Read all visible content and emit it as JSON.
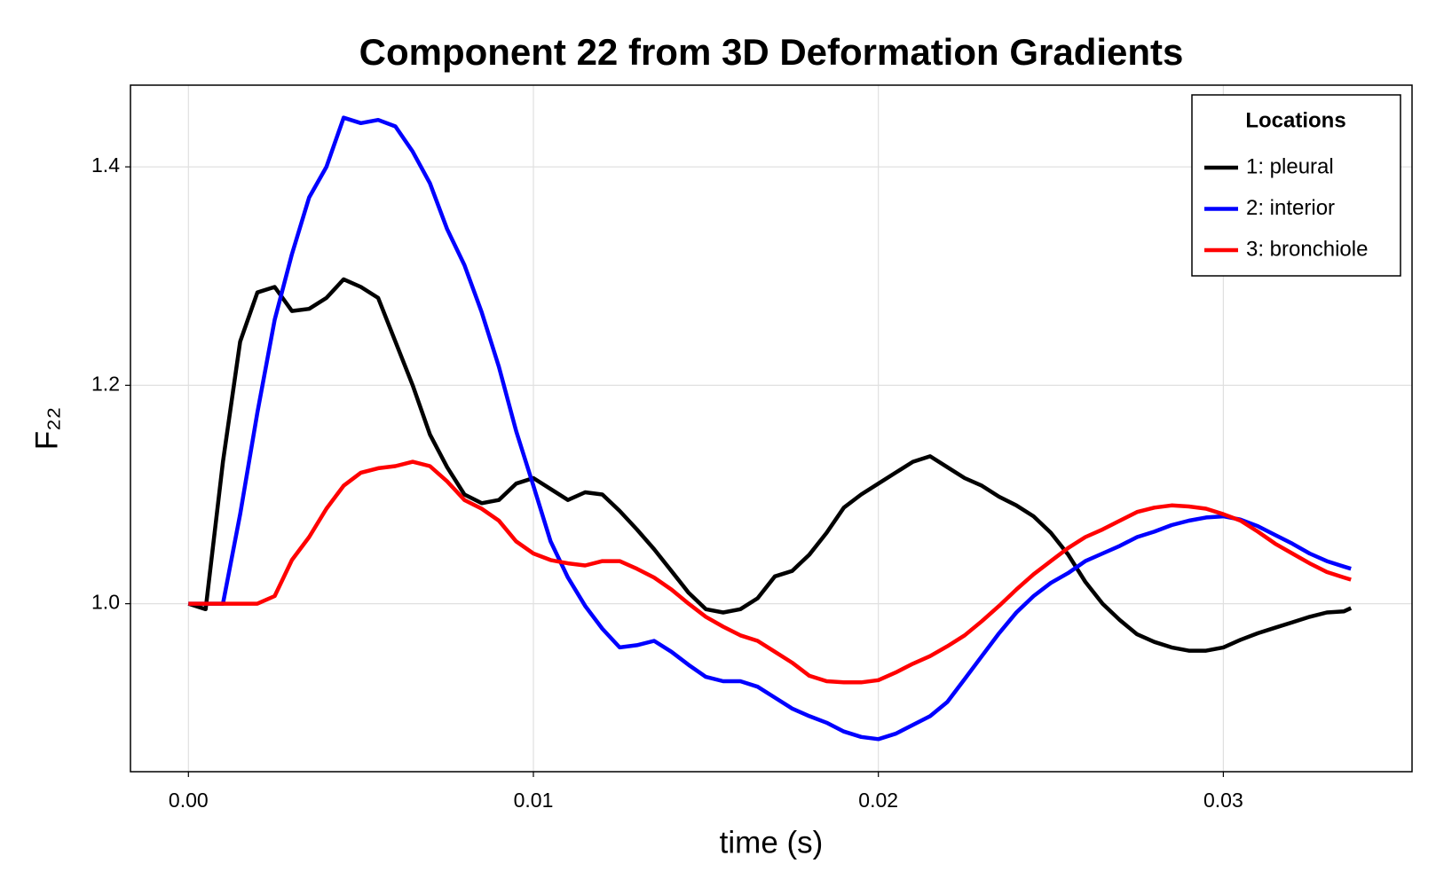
{
  "chart_data": {
    "type": "line",
    "title": "Component 22 from 3D Deformation Gradients",
    "x_label": "time (s)",
    "y_label": "F₂₂",
    "x": [
      0,
      0.0005,
      0.001,
      0.0015,
      0.002,
      0.0025,
      0.003,
      0.0035,
      0.004,
      0.0045,
      0.005,
      0.0055,
      0.006,
      0.0065,
      0.007,
      0.0075,
      0.008,
      0.0085,
      0.009,
      0.0095,
      0.01,
      0.0105,
      0.011,
      0.0115,
      0.012,
      0.0125,
      0.013,
      0.0135,
      0.014,
      0.0145,
      0.015,
      0.0155,
      0.016,
      0.0165,
      0.017,
      0.0175,
      0.018,
      0.0185,
      0.019,
      0.0195,
      0.02,
      0.0205,
      0.021,
      0.0215,
      0.022,
      0.0225,
      0.023,
      0.0235,
      0.024,
      0.0245,
      0.025,
      0.0255,
      0.026,
      0.0265,
      0.027,
      0.0275,
      0.028,
      0.0285,
      0.029,
      0.0295,
      0.03,
      0.0305,
      0.031,
      0.0315,
      0.032,
      0.0325,
      0.033,
      0.0335,
      0.0337
    ],
    "series": [
      {
        "name": "1: pleural",
        "color": "#000000",
        "values": [
          1.0,
          0.995,
          1.13,
          1.24,
          1.285,
          1.29,
          1.268,
          1.27,
          1.28,
          1.297,
          1.29,
          1.28,
          1.24,
          1.2,
          1.155,
          1.125,
          1.1,
          1.092,
          1.095,
          1.11,
          1.115,
          1.105,
          1.095,
          1.102,
          1.1,
          1.085,
          1.068,
          1.05,
          1.03,
          1.01,
          0.995,
          0.992,
          0.995,
          1.005,
          1.025,
          1.03,
          1.045,
          1.065,
          1.088,
          1.1,
          1.11,
          1.12,
          1.13,
          1.135,
          1.125,
          1.115,
          1.108,
          1.098,
          1.09,
          1.08,
          1.065,
          1.045,
          1.02,
          1.0,
          0.985,
          0.972,
          0.965,
          0.96,
          0.957,
          0.957,
          0.96,
          0.967,
          0.973,
          0.978,
          0.983,
          0.988,
          0.992,
          0.993,
          0.996
        ]
      },
      {
        "name": "2: interior",
        "color": "#0000ff",
        "values": [
          1.0,
          1.0,
          1.0,
          1.082,
          1.175,
          1.26,
          1.32,
          1.372,
          1.4,
          1.445,
          1.44,
          1.443,
          1.437,
          1.414,
          1.385,
          1.343,
          1.31,
          1.267,
          1.217,
          1.158,
          1.108,
          1.057,
          1.024,
          0.998,
          0.977,
          0.96,
          0.962,
          0.966,
          0.956,
          0.944,
          0.933,
          0.929,
          0.929,
          0.924,
          0.914,
          0.904,
          0.897,
          0.891,
          0.883,
          0.878,
          0.876,
          0.881,
          0.889,
          0.897,
          0.91,
          0.931,
          0.952,
          0.973,
          0.992,
          1.007,
          1.019,
          1.028,
          1.039,
          1.046,
          1.053,
          1.061,
          1.066,
          1.072,
          1.076,
          1.079,
          1.08,
          1.077,
          1.071,
          1.063,
          1.055,
          1.046,
          1.039,
          1.034,
          1.032
        ]
      },
      {
        "name": "3: bronchiole",
        "color": "#ff0000",
        "values": [
          1.0,
          1.0,
          1.0,
          1.0,
          1.0,
          1.007,
          1.04,
          1.061,
          1.087,
          1.108,
          1.12,
          1.124,
          1.126,
          1.13,
          1.126,
          1.112,
          1.095,
          1.087,
          1.076,
          1.057,
          1.046,
          1.04,
          1.037,
          1.035,
          1.039,
          1.039,
          1.032,
          1.024,
          1.013,
          1.0,
          0.988,
          0.979,
          0.971,
          0.966,
          0.956,
          0.946,
          0.934,
          0.929,
          0.928,
          0.928,
          0.93,
          0.937,
          0.945,
          0.952,
          0.961,
          0.971,
          0.984,
          0.998,
          1.013,
          1.027,
          1.039,
          1.051,
          1.061,
          1.068,
          1.076,
          1.084,
          1.088,
          1.09,
          1.089,
          1.087,
          1.082,
          1.076,
          1.066,
          1.055,
          1.046,
          1.037,
          1.029,
          1.024,
          1.022
        ]
      }
    ],
    "xlim": [
      -0.00168,
      0.03547
    ],
    "xticks": [
      {
        "value": 0,
        "label": "0.00"
      },
      {
        "value": 0.01,
        "label": "0.01"
      },
      {
        "value": 0.02,
        "label": "0.02"
      },
      {
        "value": 0.03,
        "label": "0.03"
      }
    ],
    "ylim": [
      0.8462,
      1.4748
    ],
    "yticks": [
      {
        "value": 1,
        "label": "1.0"
      },
      1.2,
      1.4
    ],
    "grid": true,
    "legend_title": "Locations",
    "legend_position": "upper-right"
  }
}
